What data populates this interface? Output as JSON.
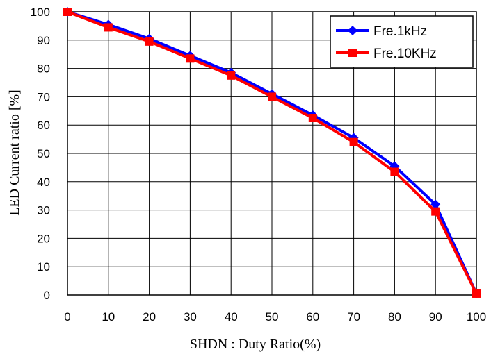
{
  "chart_data": {
    "type": "line",
    "xlabel": "SHDN : Duty Ratio(%)",
    "ylabel": "LED Current ratio [%]",
    "xlim": [
      0,
      100
    ],
    "ylim": [
      0,
      100
    ],
    "xticks": [
      0,
      10,
      20,
      30,
      40,
      50,
      60,
      70,
      80,
      90,
      100
    ],
    "yticks": [
      0,
      10,
      20,
      30,
      40,
      50,
      60,
      70,
      80,
      90,
      100
    ],
    "grid": true,
    "legend_position": "top-right",
    "series": [
      {
        "name": "Fre.1kHz",
        "color": "#0000ff",
        "marker": "diamond",
        "x": [
          0,
          10,
          20,
          30,
          40,
          50,
          60,
          70,
          80,
          90,
          100
        ],
        "y": [
          100,
          95.5,
          90.5,
          84.5,
          78.5,
          71,
          63.5,
          55.5,
          45.5,
          32,
          0.5
        ]
      },
      {
        "name": "Fre.10KHz",
        "color": "#ff0000",
        "marker": "square",
        "x": [
          0,
          10,
          20,
          30,
          40,
          50,
          60,
          70,
          80,
          90,
          100
        ],
        "y": [
          100,
          94.5,
          89.5,
          83.5,
          77.5,
          70,
          62.5,
          54,
          43.5,
          29.5,
          0.5
        ]
      }
    ]
  }
}
